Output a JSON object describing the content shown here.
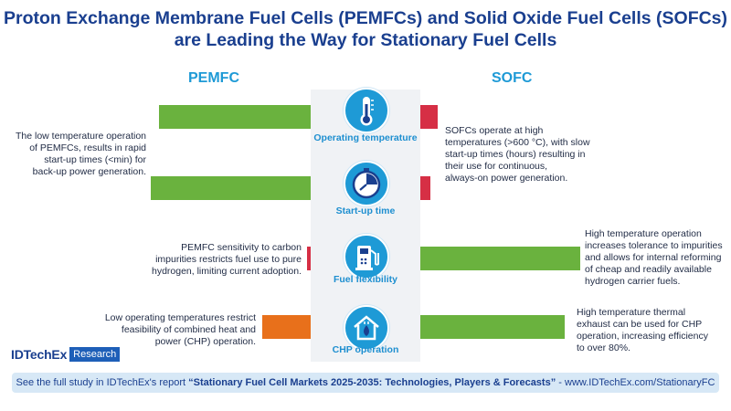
{
  "title": {
    "line1": "Proton Exchange Membrane Fuel Cells (PEMFCs) and Solid Oxide Fuel Cells (SOFCs)",
    "line2": "are Leading the Way for Stationary Fuel Cells"
  },
  "columns": {
    "left": "PEMFC",
    "right": "SOFC"
  },
  "colors": {
    "green": "#6ab23e",
    "red": "#d62f45",
    "orange": "#e8701b",
    "icon_blue": "#1e9ad6"
  },
  "rows": [
    {
      "label": "Operating temperature",
      "icon": "thermometer-icon",
      "pemfc": {
        "level": 0.95,
        "color": "green",
        "text": [
          "The low temperature operation",
          "of PEMFCs, results in rapid",
          "start-up times (<min) for",
          "back-up power generation."
        ]
      },
      "sofc": {
        "level": 0.11,
        "color": "red",
        "text": [
          "SOFCs operate at high",
          "temperatures (>600 °C), with slow",
          "start-up times (hours) resulting in",
          "their use for continuous,",
          "always-on power generation."
        ]
      }
    },
    {
      "label": "Start-up time",
      "icon": "clock-icon",
      "pemfc": {
        "level": 1.0,
        "color": "green",
        "text": []
      },
      "sofc": {
        "level": 0.06,
        "color": "red",
        "text": []
      }
    },
    {
      "label": "Fuel flexibility",
      "icon": "fuel-pump-icon",
      "pemfc": {
        "level": 0.02,
        "color": "red",
        "text": [
          "PEMFC sensitivity to carbon",
          "impurities restricts fuel use to pure",
          "hydrogen, limiting current adoption."
        ]
      },
      "sofc": {
        "level": 1.0,
        "color": "green",
        "text": [
          "High temperature operation",
          "increases tolerance to impurities",
          "and allows for internal reforming",
          "of cheap and readily available",
          "hydrogen carrier fuels."
        ]
      }
    },
    {
      "label": "CHP operation",
      "icon": "plug-flame-icon",
      "pemfc": {
        "level": 0.3,
        "color": "orange",
        "text": [
          "Low operating temperatures restrict",
          "feasibility of combined heat and",
          "power (CHP) operation."
        ]
      },
      "sofc": {
        "level": 0.9,
        "color": "green",
        "text": [
          "High temperature thermal",
          "exhaust can be used for CHP",
          "operation, increasing efficiency",
          "to over 80%."
        ]
      }
    }
  ],
  "logo": {
    "brand": "IDTechEx",
    "tag": "Research"
  },
  "footer": {
    "prefix": "See the full study in IDTechEx's report ",
    "report": "“Stationary Fuel Cell Markets 2025-2035: Technologies, Players & Forecasts”",
    "suffix": " - www.IDTechEx.com/StationaryFC"
  }
}
